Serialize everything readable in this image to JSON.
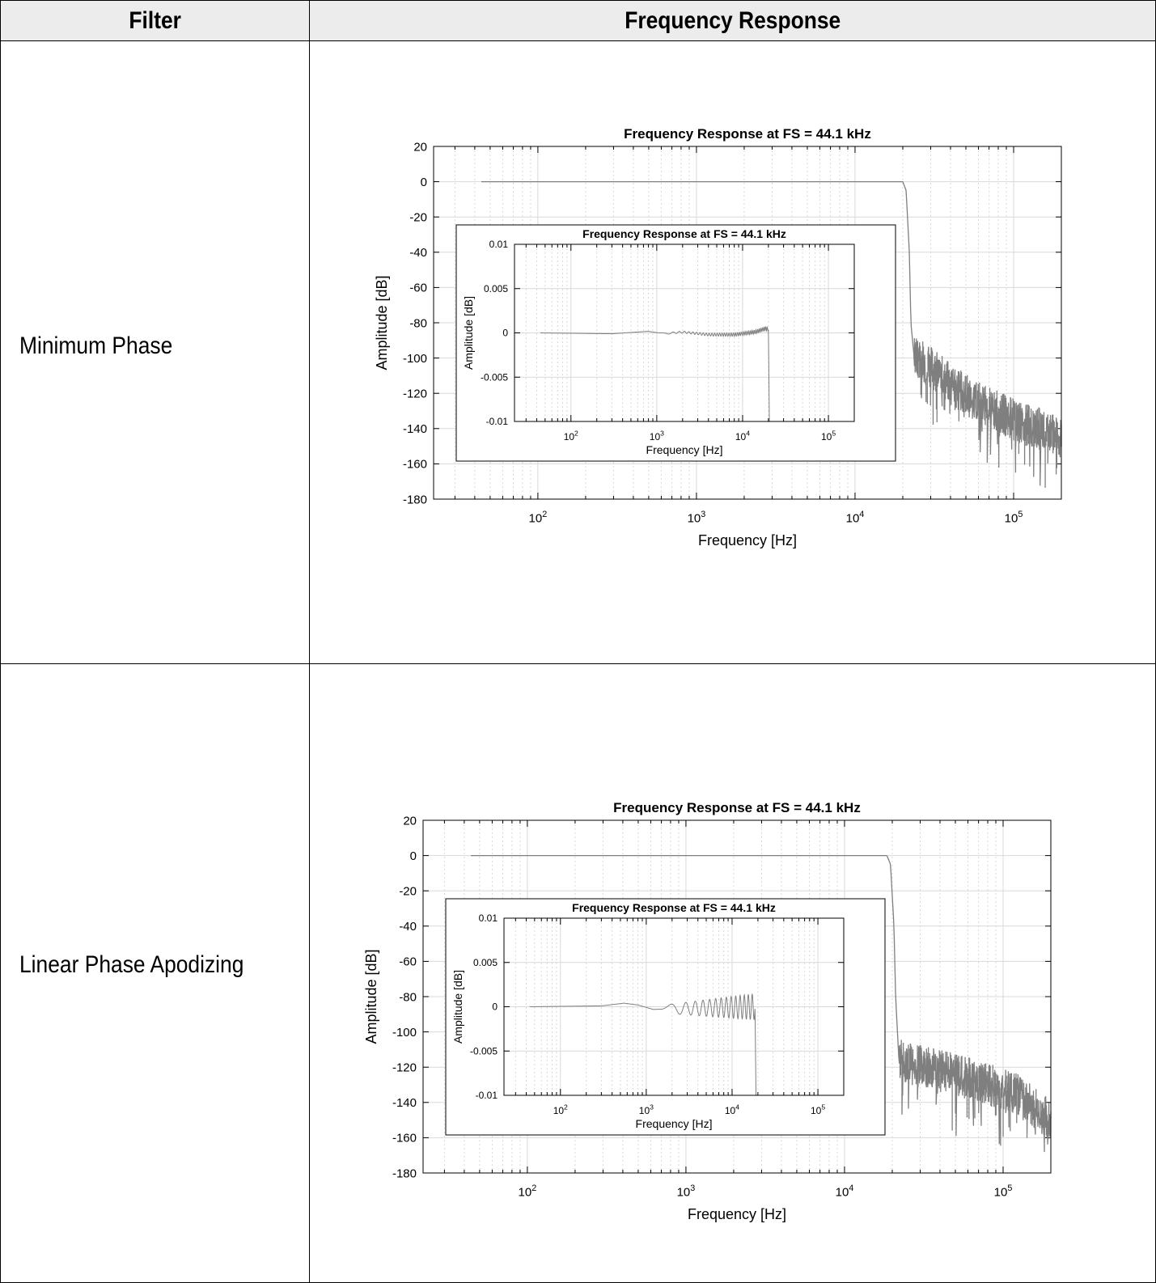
{
  "table": {
    "headers": [
      "Filter",
      "Frequency Response"
    ],
    "rows": [
      {
        "filter": "Minimum Phase"
      },
      {
        "filter": "Linear Phase Apodizing"
      }
    ]
  },
  "colors": {
    "trace": "#7f7f7f",
    "grid": "#d9d9d9",
    "axis": "#000000",
    "header_bg": "#ececec"
  },
  "chart_data": [
    {
      "type": "line",
      "title": "Frequency Response at FS = 44.1 kHz",
      "xlabel": "Frequency [Hz]",
      "ylabel": "Amplitude [dB]",
      "xscale": "log",
      "xlim": [
        22,
        200000
      ],
      "ylim": [
        -180,
        20
      ],
      "xticks": [
        100,
        1000,
        10000,
        100000
      ],
      "xtick_labels": [
        [
          "10",
          "2"
        ],
        [
          "10",
          "3"
        ],
        [
          "10",
          "4"
        ],
        [
          "10",
          "5"
        ]
      ],
      "yticks": [
        20,
        0,
        -20,
        -40,
        -60,
        -80,
        -100,
        -120,
        -140,
        -160,
        -180
      ],
      "grid": true,
      "series": [
        {
          "color": "#7f7f7f",
          "points": [
            [
              44,
              0
            ],
            [
              20000,
              0
            ],
            [
              21000,
              -5
            ],
            [
              22000,
              -40
            ],
            [
              22500,
              -80
            ],
            [
              23500,
              -98
            ],
            [
              25000,
              -100
            ],
            [
              30000,
              -105
            ],
            [
              40000,
              -115
            ],
            [
              60000,
              -125
            ],
            [
              100000,
              -135
            ],
            [
              200000,
              -145
            ]
          ],
          "noise_from": 23500,
          "noise_amplitude": 12
        }
      ],
      "inset": {
        "title": "Frequency Response at FS = 44.1 kHz",
        "xlabel": "Frequency [Hz]",
        "ylabel": "Amplitude [dB]",
        "xscale": "log",
        "xlim": [
          22,
          200000
        ],
        "ylim": [
          -0.01,
          0.01
        ],
        "xticks": [
          100,
          1000,
          10000,
          100000
        ],
        "xtick_labels": [
          [
            "10",
            "2"
          ],
          [
            "10",
            "3"
          ],
          [
            "10",
            "4"
          ],
          [
            "10",
            "5"
          ]
        ],
        "yticks": [
          0.01,
          0.005,
          0,
          -0.005,
          -0.01
        ],
        "ytick_labels": [
          "0.01",
          "0.005",
          "0",
          "-0.005",
          "-0.01"
        ],
        "series": [
          {
            "color": "#7f7f7f",
            "points": [
              [
                44,
                0.0
              ],
              [
                300,
                -0.0001
              ],
              [
                600,
                0.0001
              ],
              [
                800,
                0.00018
              ],
              [
                1200,
                -0.0001
              ],
              [
                2000,
                0.0001
              ],
              [
                4000,
                -0.0002
              ],
              [
                8000,
                -0.0002
              ],
              [
                14000,
                0.0001
              ],
              [
                18500,
                0.0005
              ],
              [
                20000,
                0.0004
              ],
              [
                20500,
                -0.01
              ]
            ],
            "ripple_from": 1000,
            "ripple_amplitude": 0.0002,
            "ripple_cycles": 40
          }
        ]
      }
    },
    {
      "type": "line",
      "title": "Frequency Response at FS = 44.1 kHz",
      "xlabel": "Frequency [Hz]",
      "ylabel": "Amplitude [dB]",
      "xscale": "log",
      "xlim": [
        22,
        200000
      ],
      "ylim": [
        -180,
        20
      ],
      "xticks": [
        100,
        1000,
        10000,
        100000
      ],
      "xtick_labels": [
        [
          "10",
          "2"
        ],
        [
          "10",
          "3"
        ],
        [
          "10",
          "4"
        ],
        [
          "10",
          "5"
        ]
      ],
      "yticks": [
        20,
        0,
        -20,
        -40,
        -60,
        -80,
        -100,
        -120,
        -140,
        -160,
        -180
      ],
      "grid": true,
      "series": [
        {
          "color": "#7f7f7f",
          "points": [
            [
              44,
              0
            ],
            [
              18500,
              0
            ],
            [
              19500,
              -5
            ],
            [
              20500,
              -40
            ],
            [
              21000,
              -80
            ],
            [
              22000,
              -115
            ],
            [
              25000,
              -118
            ],
            [
              40000,
              -122
            ],
            [
              70000,
              -128
            ],
            [
              120000,
              -135
            ],
            [
              200000,
              -150
            ]
          ],
          "noise_from": 22000,
          "noise_amplitude": 12
        }
      ],
      "inset": {
        "title": "Frequency Response at FS = 44.1 kHz",
        "xlabel": "Frequency [Hz]",
        "ylabel": "Amplitude [dB]",
        "xscale": "log",
        "xlim": [
          22,
          200000
        ],
        "ylim": [
          -0.01,
          0.01
        ],
        "xticks": [
          100,
          1000,
          10000,
          100000
        ],
        "xtick_labels": [
          [
            "10",
            "2"
          ],
          [
            "10",
            "3"
          ],
          [
            "10",
            "4"
          ],
          [
            "10",
            "5"
          ]
        ],
        "yticks": [
          0.01,
          0.005,
          0,
          -0.005,
          -0.01
        ],
        "ytick_labels": [
          "0.01",
          "0.005",
          "0",
          "-0.005",
          "-0.01"
        ],
        "series": [
          {
            "color": "#7f7f7f",
            "points": [
              [
                44,
                0.0
              ],
              [
                300,
                0.0001
              ],
              [
                550,
                0.0004
              ],
              [
                800,
                0.0002
              ],
              [
                1200,
                -0.0003
              ],
              [
                18500,
                0.0
              ],
              [
                19000,
                -0.01
              ]
            ],
            "ripple_from": 1500,
            "ripple_amplitude": 0.0012,
            "ripple_cycles": 14
          }
        ]
      }
    }
  ]
}
